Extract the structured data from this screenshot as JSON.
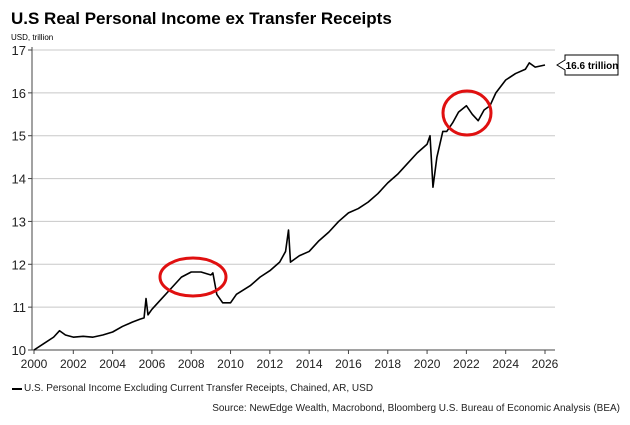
{
  "chart_data": {
    "type": "line",
    "title": "U.S Real Personal Income ex Transfer Receipts",
    "ylabel": "USD, trillion",
    "xlabel": "",
    "xlim": [
      2000,
      2026.5
    ],
    "ylim": [
      10,
      17
    ],
    "grid": "horizontal",
    "x_ticks": [
      "2000",
      "2002",
      "2004",
      "2006",
      "2008",
      "2010",
      "2012",
      "2014",
      "2016",
      "2018",
      "2020",
      "2022",
      "2024",
      "2026"
    ],
    "y_ticks": [
      "10",
      "11",
      "12",
      "13",
      "14",
      "15",
      "16",
      "17"
    ],
    "series": [
      {
        "name": "U.S. Personal Income Excluding Current Transfer Receipts, Chained, AR, USD",
        "color": "#000000",
        "x": [
          2000,
          2000.5,
          2001,
          2001.3,
          2001.6,
          2002,
          2002.5,
          2003,
          2003.5,
          2004,
          2004.5,
          2005,
          2005.4,
          2005.6,
          2005.7,
          2005.8,
          2006,
          2006.5,
          2007,
          2007.5,
          2008,
          2008.5,
          2009,
          2009.1,
          2009.3,
          2009.6,
          2010,
          2010.3,
          2011,
          2011.5,
          2012,
          2012.5,
          2012.8,
          2012.95,
          2013.05,
          2013.5,
          2014,
          2014.5,
          2015,
          2015.5,
          2016,
          2016.5,
          2017,
          2017.5,
          2018,
          2018.5,
          2019,
          2019.5,
          2020,
          2020.15,
          2020.3,
          2020.5,
          2020.8,
          2021,
          2021.3,
          2021.6,
          2022,
          2022.3,
          2022.6,
          2022.9,
          2023.2,
          2023.5,
          2024,
          2024.5,
          2025,
          2025.2,
          2025.5,
          2026
        ],
        "y": [
          10.0,
          10.15,
          10.3,
          10.45,
          10.35,
          10.3,
          10.32,
          10.3,
          10.35,
          10.42,
          10.55,
          10.65,
          10.72,
          10.75,
          11.2,
          10.82,
          10.95,
          11.2,
          11.45,
          11.7,
          11.82,
          11.82,
          11.75,
          11.8,
          11.3,
          11.1,
          11.1,
          11.3,
          11.5,
          11.7,
          11.85,
          12.05,
          12.3,
          12.8,
          12.05,
          12.2,
          12.3,
          12.55,
          12.75,
          13.0,
          13.2,
          13.3,
          13.45,
          13.65,
          13.9,
          14.1,
          14.35,
          14.6,
          14.8,
          15.0,
          13.8,
          14.5,
          15.1,
          15.1,
          15.3,
          15.55,
          15.7,
          15.5,
          15.35,
          15.6,
          15.7,
          16.0,
          16.3,
          16.45,
          16.55,
          16.7,
          16.6,
          16.65
        ]
      }
    ],
    "annotations": [
      {
        "text": "16.6 trillion"
      }
    ],
    "legend_position": "bottom-left",
    "source": "Source: NewEdge Wealth, Macrobond, Bloomberg U.S. Bureau of Economic Analysis (BEA)"
  }
}
